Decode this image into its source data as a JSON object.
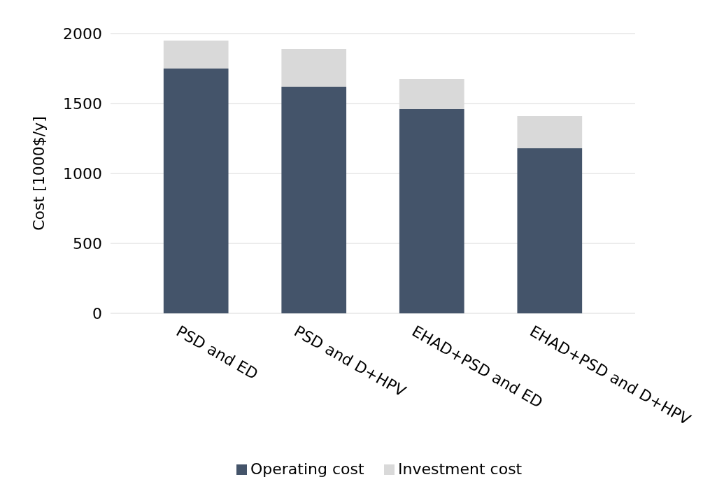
{
  "chart_data": {
    "type": "bar",
    "stacked": true,
    "ylabel": "Cost [1000$/y]",
    "categories": [
      "PSD and ED",
      "PSD and D+HPV",
      "EHAD+PSD and ED",
      "EHAD+PSD and D+HPV"
    ],
    "series": [
      {
        "name": "Operating cost",
        "color": "#44546a",
        "values": [
          1750,
          1620,
          1460,
          1180
        ]
      },
      {
        "name": "Investment cost",
        "color": "#d9d9d9",
        "values": [
          200,
          270,
          215,
          230
        ]
      }
    ],
    "ylim": [
      0,
      2000
    ],
    "yticks": [
      0,
      500,
      1000,
      1500,
      2000
    ],
    "grid": "y",
    "legend": "bottom"
  }
}
